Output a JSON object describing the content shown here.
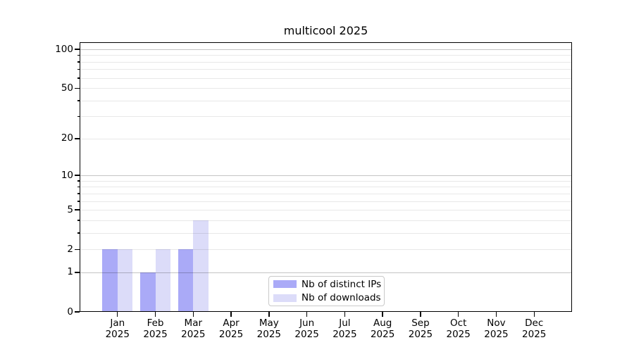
{
  "chart_data": {
    "type": "bar",
    "title": "multicool 2025",
    "categories": [
      {
        "month": "Jan",
        "year": "2025"
      },
      {
        "month": "Feb",
        "year": "2025"
      },
      {
        "month": "Mar",
        "year": "2025"
      },
      {
        "month": "Apr",
        "year": "2025"
      },
      {
        "month": "May",
        "year": "2025"
      },
      {
        "month": "Jun",
        "year": "2025"
      },
      {
        "month": "Jul",
        "year": "2025"
      },
      {
        "month": "Aug",
        "year": "2025"
      },
      {
        "month": "Sep",
        "year": "2025"
      },
      {
        "month": "Oct",
        "year": "2025"
      },
      {
        "month": "Nov",
        "year": "2025"
      },
      {
        "month": "Dec",
        "year": "2025"
      }
    ],
    "series": [
      {
        "name": "Nb of distinct IPs",
        "color": "#aaaaf7",
        "values": [
          2,
          1,
          2,
          0,
          0,
          0,
          0,
          0,
          0,
          0,
          0,
          0
        ]
      },
      {
        "name": "Nb of downloads",
        "color": "#dcdcf9",
        "values": [
          2,
          2,
          4,
          0,
          0,
          0,
          0,
          0,
          0,
          0,
          0,
          0
        ]
      }
    ],
    "yaxis": {
      "scale": "log1p",
      "tick_labels": [
        0,
        1,
        2,
        5,
        10,
        20,
        50,
        100
      ],
      "major_gridlines": [
        1,
        10,
        100
      ],
      "minor_gridlines": [
        2,
        3,
        4,
        5,
        6,
        7,
        8,
        9,
        20,
        30,
        40,
        50,
        60,
        70,
        80,
        90
      ],
      "range": [
        0,
        114
      ]
    },
    "xlabel": "",
    "ylabel": "",
    "grid": true,
    "legend_position": "lower-center-inside"
  }
}
